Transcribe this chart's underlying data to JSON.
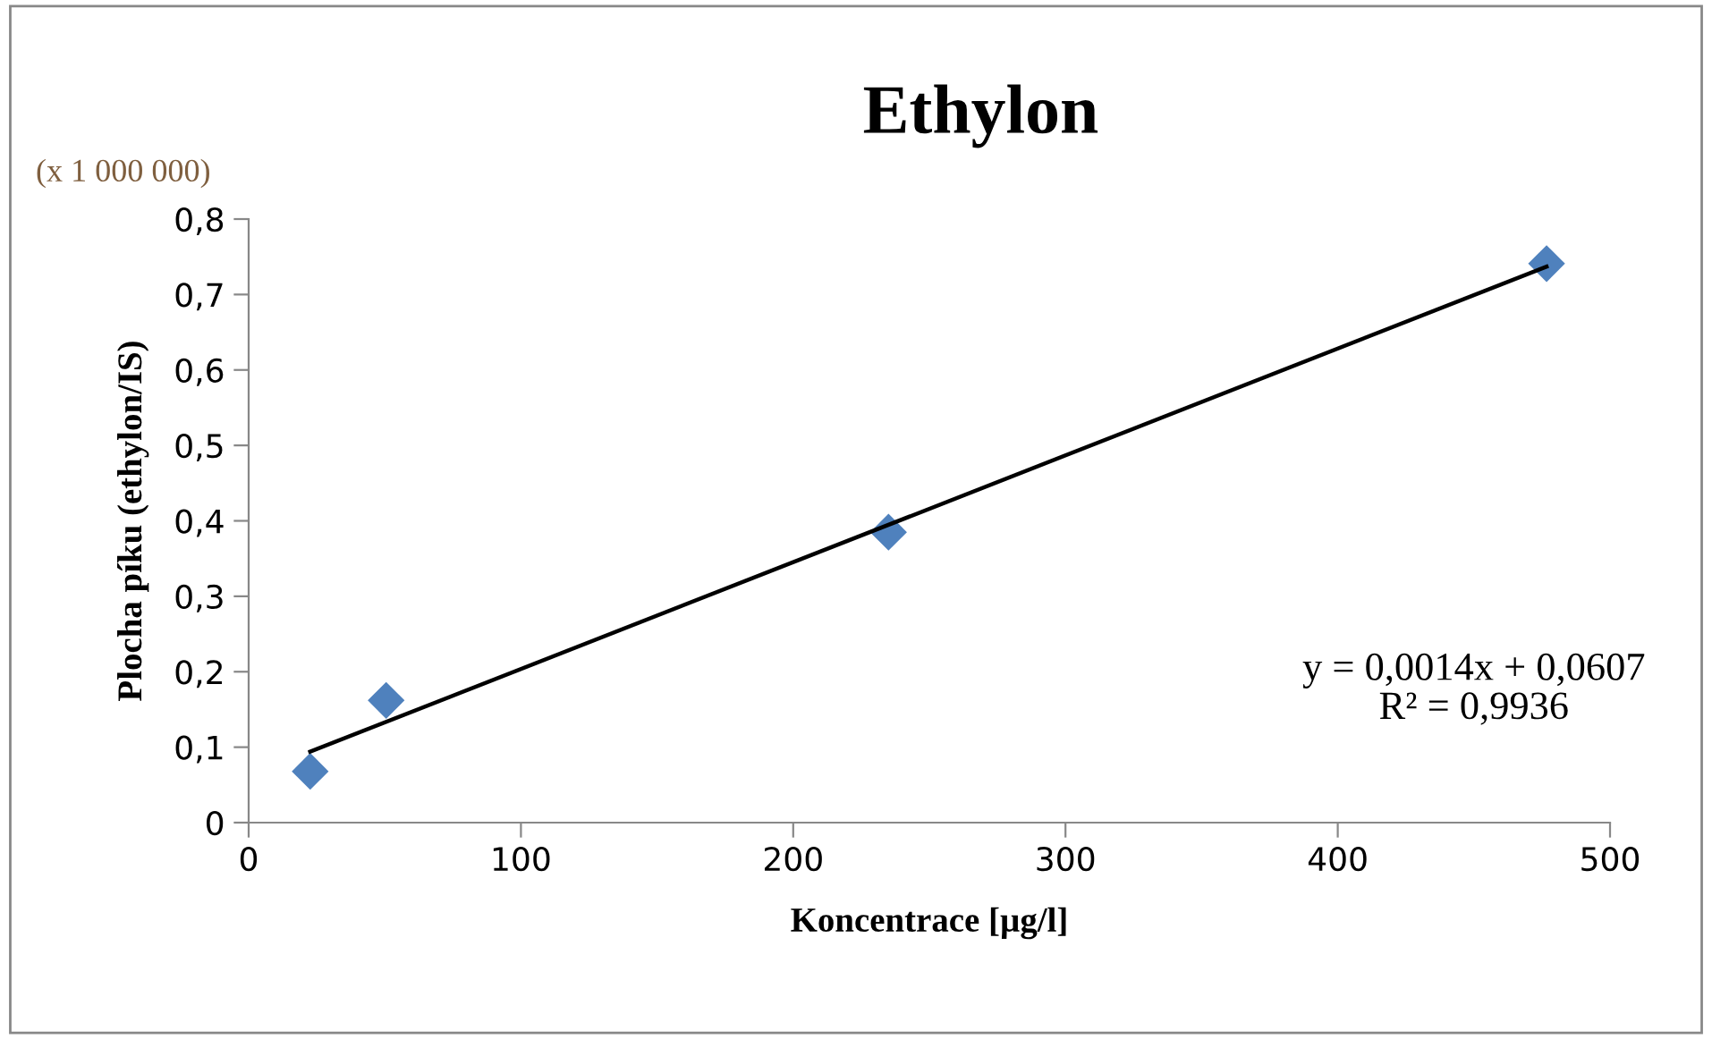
{
  "chart_data": {
    "type": "scatter",
    "title": "Ethylon",
    "xlabel": "Koncentrace [µg/l]",
    "ylabel": "Plocha píku (ethylon/IS)",
    "annotations": [
      "(x 1 000 000)",
      "y = 0,0014x + 0,0607\nR² = 0,9936"
    ],
    "x": [
      22.6,
      50.5,
      235,
      476.7
    ],
    "series": [
      {
        "color": "#4f81bd",
        "marker": "diamond",
        "values": [
          0.068,
          0.162,
          0.385,
          0.741
        ]
      },
      {
        "type": "line",
        "color": "#000000",
        "x": [
          22.6,
          476.7
        ],
        "values": [
          0.094,
          0.737
        ],
        "line_style": "solid",
        "marker": "none"
      }
    ],
    "xlim": [
      0,
      500
    ],
    "xticks": [
      0,
      100,
      200,
      300,
      400,
      500
    ],
    "ylim": [
      0,
      0.8
    ],
    "yticks": [
      {
        "value": 0,
        "label": "0"
      },
      {
        "value": 0.1,
        "label": "0,1"
      },
      {
        "value": 0.2,
        "label": "0,2"
      },
      {
        "value": 0.3,
        "label": "0,3"
      },
      {
        "value": 0.4,
        "label": "0,4"
      },
      {
        "value": 0.5,
        "label": "0,5"
      },
      {
        "value": 0.6,
        "label": "0,6"
      },
      {
        "value": 0.7,
        "label": "0,7"
      },
      {
        "value": 0.8,
        "label": "0,8"
      }
    ],
    "grid": false,
    "legend": false
  }
}
